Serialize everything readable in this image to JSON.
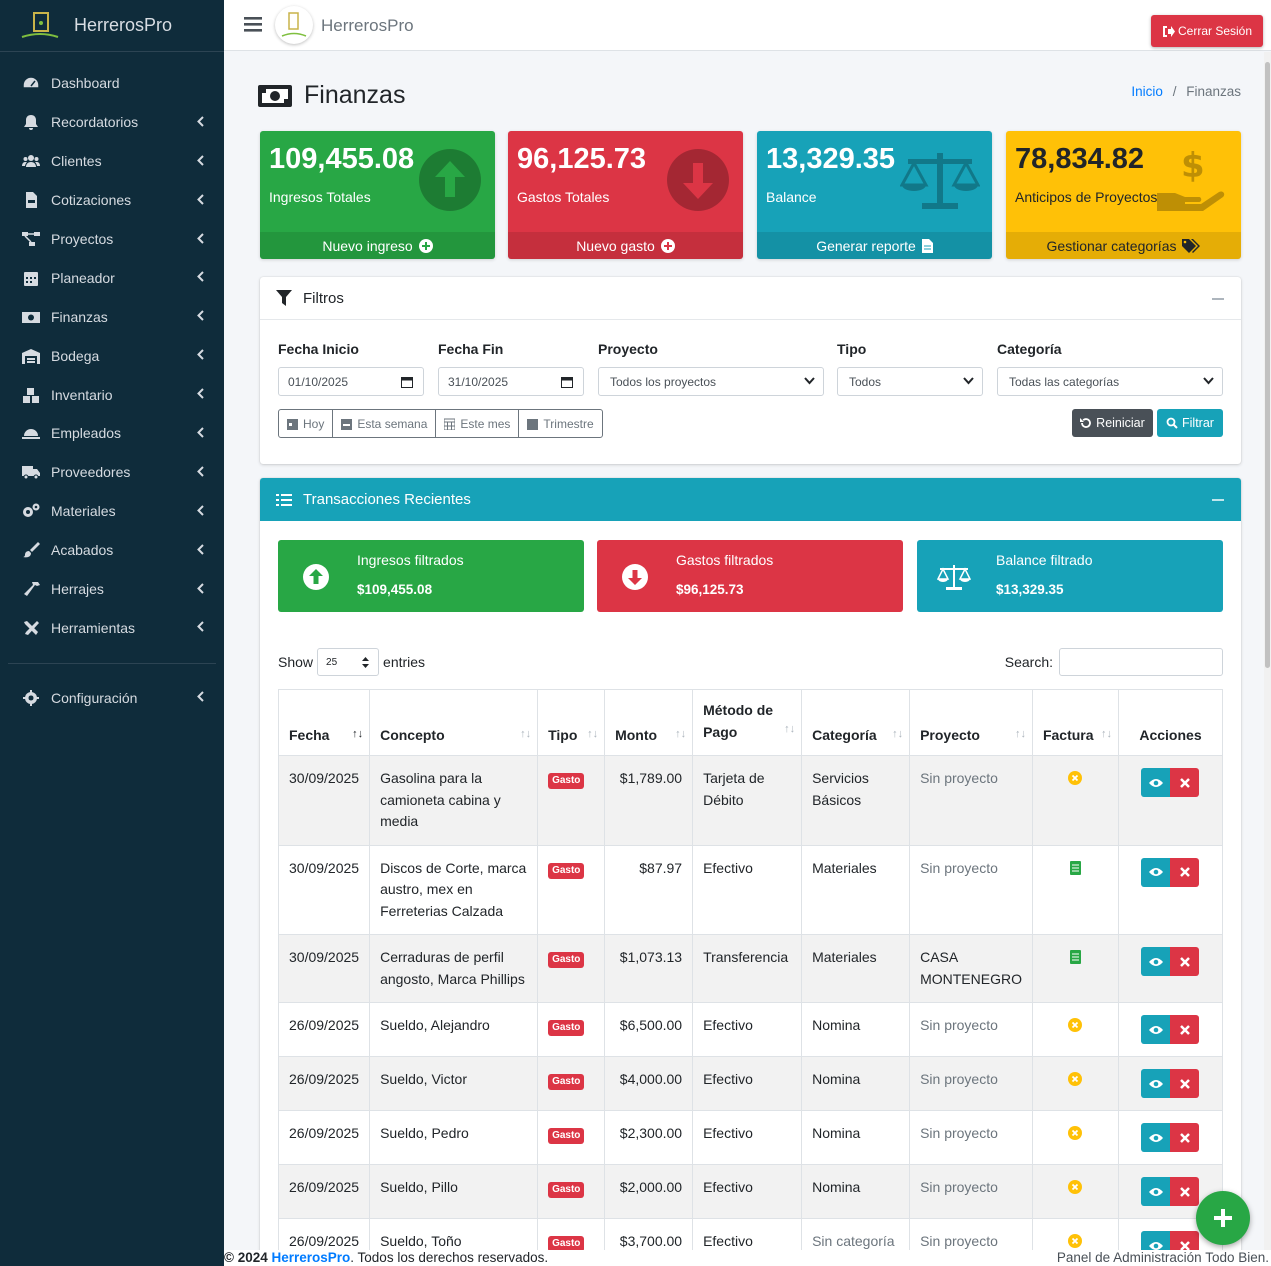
{
  "app": {
    "name": "HerrerosPro"
  },
  "topbar": {
    "title": "HerrerosPro",
    "logout_label": "Cerrar Sesión"
  },
  "sidebar": {
    "items": [
      {
        "label": "Dashboard",
        "icon": "tachometer-icon"
      },
      {
        "label": "Recordatorios",
        "icon": "bell-icon"
      },
      {
        "label": "Clientes",
        "icon": "users-icon"
      },
      {
        "label": "Cotizaciones",
        "icon": "file-invoice-icon"
      },
      {
        "label": "Proyectos",
        "icon": "project-diagram-icon"
      },
      {
        "label": "Planeador",
        "icon": "calendar-icon"
      },
      {
        "label": "Finanzas",
        "icon": "money-bill-icon"
      },
      {
        "label": "Bodega",
        "icon": "warehouse-icon"
      },
      {
        "label": "Inventario",
        "icon": "boxes-icon"
      },
      {
        "label": "Empleados",
        "icon": "hard-hat-icon"
      },
      {
        "label": "Proveedores",
        "icon": "truck-icon"
      },
      {
        "label": "Materiales",
        "icon": "cogs-icon"
      },
      {
        "label": "Acabados",
        "icon": "paint-brush-icon"
      },
      {
        "label": "Herrajes",
        "icon": "hammer-icon"
      },
      {
        "label": "Herramientas",
        "icon": "tools-icon"
      }
    ],
    "config_label": "Configuración"
  },
  "page": {
    "title": "Finanzas",
    "breadcrumb_home": "Inicio",
    "breadcrumb_sep": "/",
    "breadcrumb_current": "Finanzas"
  },
  "stats": [
    {
      "value": "109,455.08",
      "label": "Ingresos Totales",
      "action": "Nuevo ingreso",
      "color": "#28a745"
    },
    {
      "value": "96,125.73",
      "label": "Gastos Totales",
      "action": "Nuevo gasto",
      "color": "#dc3545"
    },
    {
      "value": "13,329.35",
      "label": "Balance",
      "action": "Generar reporte",
      "color": "#17a2b8"
    },
    {
      "value": "78,834.82",
      "label": "Anticipos de Proyectos",
      "action": "Gestionar categorías",
      "color": "#ffc107"
    }
  ],
  "filters": {
    "title": "Filtros",
    "fecha_inicio_label": "Fecha Inicio",
    "fecha_inicio_value": "01/10/2025",
    "fecha_fin_label": "Fecha Fin",
    "fecha_fin_value": "31/10/2025",
    "proyecto_label": "Proyecto",
    "proyecto_value": "Todos los proyectos",
    "tipo_label": "Tipo",
    "tipo_value": "Todos",
    "categoria_label": "Categoría",
    "categoria_value": "Todas las categorías",
    "quick": [
      "Hoy",
      "Esta semana",
      "Este mes",
      "Trimestre"
    ],
    "reset_label": "Reiniciar",
    "filter_label": "Filtrar"
  },
  "transactions": {
    "title": "Transacciones Recientes",
    "summary": [
      {
        "title": "Ingresos filtrados",
        "value": "$109,455.08",
        "color": "#28a745"
      },
      {
        "title": "Gastos filtrados",
        "value": "$96,125.73",
        "color": "#dc3545"
      },
      {
        "title": "Balance filtrado",
        "value": "$13,329.35",
        "color": "#17a2b8"
      }
    ],
    "show_label": "Show",
    "show_value": "25",
    "entries_label": "entries",
    "search_label": "Search:",
    "columns": [
      "Fecha",
      "Concepto",
      "Tipo",
      "Monto",
      "Método de Pago",
      "Categoría",
      "Proyecto",
      "Factura",
      "Acciones"
    ],
    "rows": [
      {
        "fecha": "30/09/2025",
        "concepto": "Gasolina para la camioneta cabina y media",
        "tipo": "Gasto",
        "monto": "$1,789.00",
        "metodo": "Tarjeta de Débito",
        "categoria": "Servicios Básicos",
        "proyecto": "Sin proyecto",
        "factura": "no"
      },
      {
        "fecha": "30/09/2025",
        "concepto": "Discos de Corte, marca austro, mex en Ferreterias Calzada",
        "tipo": "Gasto",
        "monto": "$87.97",
        "metodo": "Efectivo",
        "categoria": "Materiales",
        "proyecto": "Sin proyecto",
        "factura": "yes"
      },
      {
        "fecha": "30/09/2025",
        "concepto": "Cerraduras de perfil angosto, Marca Phillips",
        "tipo": "Gasto",
        "monto": "$1,073.13",
        "metodo": "Transferencia",
        "categoria": "Materiales",
        "proyecto": "CASA MONTENEGRO",
        "factura": "yes"
      },
      {
        "fecha": "26/09/2025",
        "concepto": "Sueldo, Alejandro",
        "tipo": "Gasto",
        "monto": "$6,500.00",
        "metodo": "Efectivo",
        "categoria": "Nomina",
        "proyecto": "Sin proyecto",
        "factura": "no"
      },
      {
        "fecha": "26/09/2025",
        "concepto": "Sueldo, Victor",
        "tipo": "Gasto",
        "monto": "$4,000.00",
        "metodo": "Efectivo",
        "categoria": "Nomina",
        "proyecto": "Sin proyecto",
        "factura": "no"
      },
      {
        "fecha": "26/09/2025",
        "concepto": "Sueldo, Pedro",
        "tipo": "Gasto",
        "monto": "$2,300.00",
        "metodo": "Efectivo",
        "categoria": "Nomina",
        "proyecto": "Sin proyecto",
        "factura": "no"
      },
      {
        "fecha": "26/09/2025",
        "concepto": "Sueldo, Pillo",
        "tipo": "Gasto",
        "monto": "$2,000.00",
        "metodo": "Efectivo",
        "categoria": "Nomina",
        "proyecto": "Sin proyecto",
        "factura": "no"
      },
      {
        "fecha": "26/09/2025",
        "concepto": "Sueldo, Toño",
        "tipo": "Gasto",
        "monto": "$3,700.00",
        "metodo": "Efectivo",
        "categoria": "Sin categoría",
        "proyecto": "Sin proyecto",
        "factura": "no"
      }
    ]
  },
  "footer": {
    "copy": "© 2024 ",
    "brand": "HerrerosPro",
    "rights": ". Todos los derechos reservados.",
    "right_text": "Panel de Administración Todo Bien."
  }
}
